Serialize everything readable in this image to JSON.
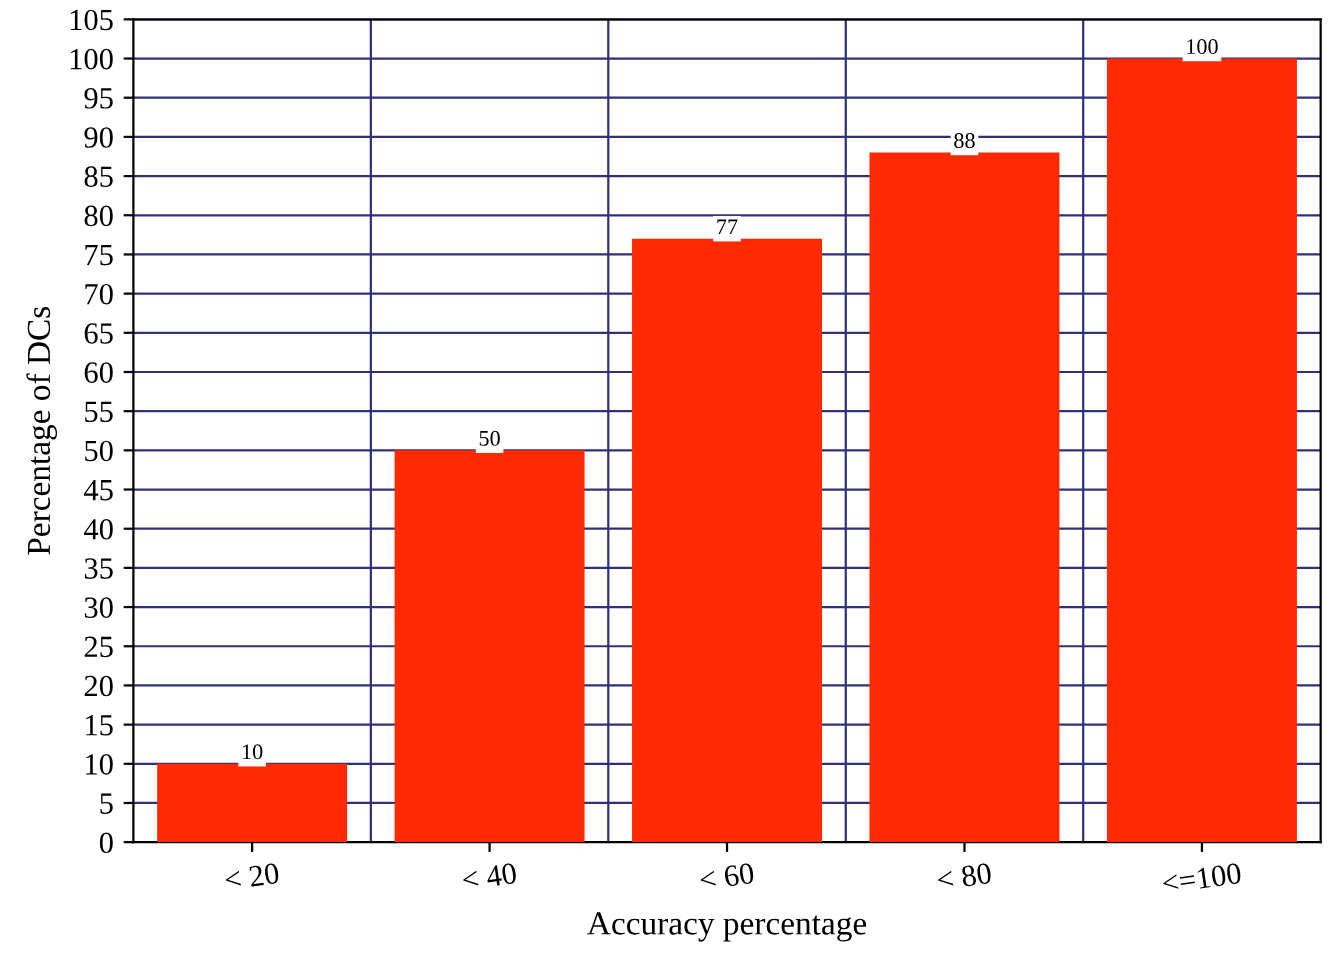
{
  "chart_data": {
    "type": "bar",
    "xlabel": "Accuracy percentage",
    "ylabel": "Percentage of DCs",
    "categories": [
      "< 20",
      "< 40",
      "< 60",
      "< 80",
      "<=100"
    ],
    "values": [
      10,
      50,
      77,
      88,
      100
    ],
    "color": "#ff2a00",
    "data_labels": true,
    "ylim": [
      0,
      105
    ],
    "yticks": [
      0,
      5,
      10,
      15,
      20,
      25,
      30,
      35,
      40,
      45,
      50,
      55,
      60,
      65,
      70,
      75,
      80,
      85,
      90,
      95,
      100,
      105
    ],
    "grid": true
  }
}
